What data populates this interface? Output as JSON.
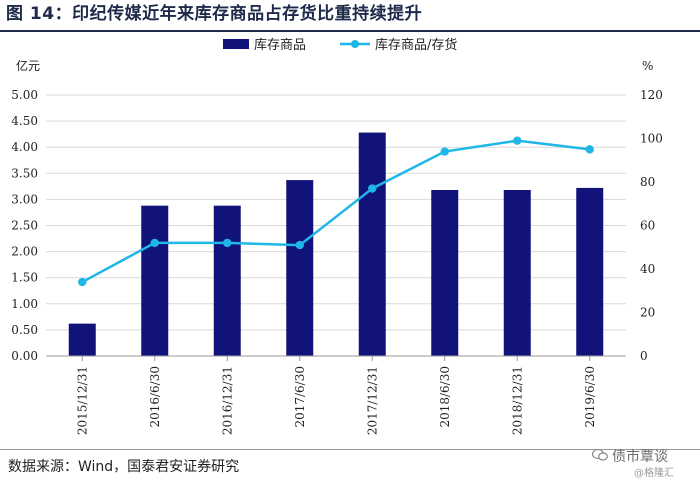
{
  "figure": {
    "title": "图 14：印纪传媒近年来库存商品占存货比重持续提升",
    "source": "数据来源：Wind，国泰君安证券研究"
  },
  "watermark": {
    "text": "债市覃谈",
    "sub": "@格隆汇",
    "icon": "wechat-bubble-icon"
  },
  "chart_data": {
    "type": "bar",
    "categories": [
      "2015/12/31",
      "2016/6/30",
      "2016/12/31",
      "2017/6/30",
      "2017/12/31",
      "2018/6/30",
      "2018/12/31",
      "2019/6/30"
    ],
    "left_unit": "亿元",
    "right_unit": "%",
    "ylim_left": [
      0,
      5
    ],
    "ylim_right": [
      0,
      120
    ],
    "yticks_left": [
      "0.00",
      "0.50",
      "1.00",
      "1.50",
      "2.00",
      "2.50",
      "3.00",
      "3.50",
      "4.00",
      "4.50",
      "5.00"
    ],
    "yticks_right": [
      "0",
      "20",
      "40",
      "60",
      "80",
      "100",
      "120"
    ],
    "grid": true,
    "legend_position": "top-center",
    "series": [
      {
        "name": "库存商品",
        "type": "bar",
        "axis": "left",
        "color": "#11127a",
        "values": [
          0.62,
          2.88,
          2.88,
          3.37,
          4.28,
          3.18,
          3.18,
          3.22
        ]
      },
      {
        "name": "库存商品/存货",
        "type": "line",
        "axis": "right",
        "color": "#1fb6e8",
        "values": [
          34,
          52,
          52,
          51,
          77,
          94,
          99,
          95
        ]
      }
    ]
  }
}
